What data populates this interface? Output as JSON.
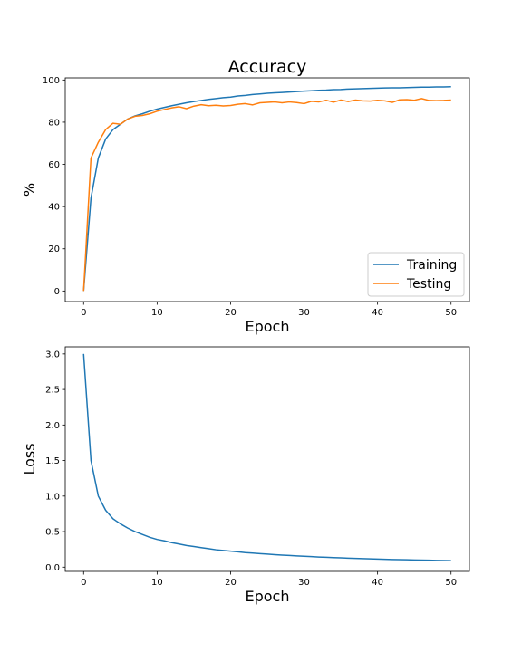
{
  "chart_data": [
    {
      "type": "line",
      "title": "Accuracy",
      "xlabel": "Epoch",
      "ylabel": "%",
      "xlim": [
        -2.5,
        52.5
      ],
      "ylim": [
        -5,
        101
      ],
      "xticks": [
        0,
        10,
        20,
        30,
        40,
        50
      ],
      "yticks": [
        0,
        20,
        40,
        60,
        80,
        100
      ],
      "grid": false,
      "legend": "lower-right",
      "x": [
        0,
        1,
        2,
        3,
        4,
        5,
        6,
        7,
        8,
        9,
        10,
        11,
        12,
        13,
        14,
        15,
        16,
        17,
        18,
        19,
        20,
        21,
        22,
        23,
        24,
        25,
        26,
        27,
        28,
        29,
        30,
        31,
        32,
        33,
        34,
        35,
        36,
        37,
        38,
        39,
        40,
        41,
        42,
        43,
        44,
        45,
        46,
        47,
        48,
        49,
        50
      ],
      "series": [
        {
          "name": "Training",
          "color": "#1f77b4",
          "values": [
            0,
            44,
            63,
            72,
            76.5,
            79,
            81.5,
            83,
            84,
            85.2,
            86.2,
            87,
            87.8,
            88.5,
            89.2,
            89.8,
            90.3,
            90.8,
            91.2,
            91.6,
            91.9,
            92.4,
            92.7,
            93.1,
            93.4,
            93.7,
            93.9,
            94.1,
            94.3,
            94.5,
            94.7,
            94.9,
            95.1,
            95.2,
            95.4,
            95.5,
            95.7,
            95.8,
            95.9,
            96,
            96.1,
            96.2,
            96.3,
            96.3,
            96.4,
            96.5,
            96.6,
            96.6,
            96.7,
            96.7,
            96.8
          ]
        },
        {
          "name": "Testing",
          "color": "#ff7f0e",
          "values": [
            0,
            63,
            70.5,
            76.5,
            79.5,
            79,
            81.5,
            82.8,
            83.2,
            84,
            85.2,
            86,
            86.8,
            87.3,
            86.4,
            87.6,
            88.3,
            87.8,
            88,
            87.7,
            87.9,
            88.5,
            88.8,
            88.2,
            89.2,
            89.4,
            89.6,
            89.2,
            89.6,
            89.3,
            88.8,
            89.9,
            89.6,
            90.4,
            89.5,
            90.5,
            89.8,
            90.5,
            90.1,
            90,
            90.4,
            90.1,
            89.4,
            90.6,
            90.7,
            90.4,
            91.2,
            90.3,
            90.2,
            90.3,
            90.5
          ]
        }
      ]
    },
    {
      "type": "line",
      "title": "",
      "xlabel": "Epoch",
      "ylabel": "Loss",
      "xlim": [
        -2.5,
        52.5
      ],
      "ylim": [
        -0.06,
        3.1
      ],
      "xticks": [
        0,
        10,
        20,
        30,
        40,
        50
      ],
      "yticks": [
        "0.0",
        "0.5",
        "1.0",
        "1.5",
        "2.0",
        "2.5",
        "3.0"
      ],
      "grid": false,
      "x": [
        0,
        1,
        2,
        3,
        4,
        5,
        6,
        7,
        8,
        9,
        10,
        11,
        12,
        13,
        14,
        15,
        16,
        17,
        18,
        19,
        20,
        21,
        22,
        23,
        24,
        25,
        26,
        27,
        28,
        29,
        30,
        31,
        32,
        33,
        34,
        35,
        36,
        37,
        38,
        39,
        40,
        41,
        42,
        43,
        44,
        45,
        46,
        47,
        48,
        49,
        50
      ],
      "series": [
        {
          "color": "#1f77b4",
          "values": [
            3.0,
            1.5,
            1.0,
            0.8,
            0.68,
            0.61,
            0.55,
            0.5,
            0.46,
            0.42,
            0.39,
            0.37,
            0.345,
            0.325,
            0.305,
            0.29,
            0.275,
            0.26,
            0.245,
            0.235,
            0.225,
            0.215,
            0.205,
            0.198,
            0.19,
            0.183,
            0.176,
            0.17,
            0.164,
            0.158,
            0.153,
            0.148,
            0.143,
            0.139,
            0.135,
            0.131,
            0.127,
            0.123,
            0.12,
            0.117,
            0.114,
            0.111,
            0.108,
            0.106,
            0.104,
            0.101,
            0.099,
            0.097,
            0.095,
            0.093,
            0.091
          ]
        }
      ]
    }
  ]
}
